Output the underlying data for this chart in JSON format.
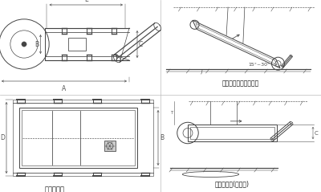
{
  "bg_color": "#ffffff",
  "panel_labels": [
    "外形尺寸图",
    "安装示意图（傘斜式）",
    "安装示意图(水平式)"
  ],
  "dim_labels": [
    "A",
    "B",
    "C",
    "D",
    "E"
  ],
  "angle_label": "15°~30°",
  "line_color": "#444444",
  "dim_color": "#555555"
}
